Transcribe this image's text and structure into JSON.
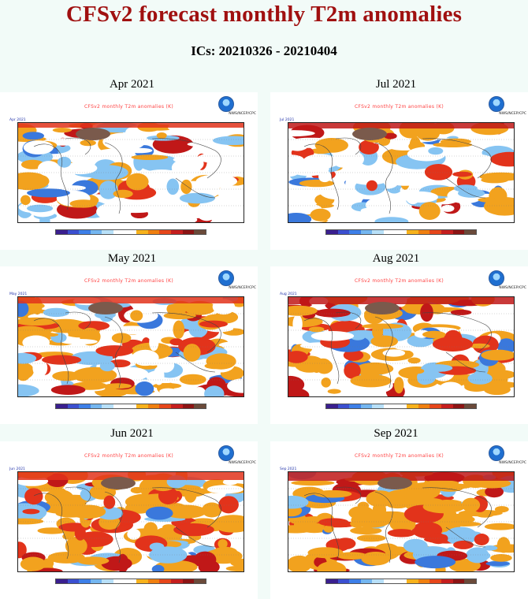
{
  "header": {
    "title": "CFSv2 forecast monthly T2m anomalies",
    "subtitle": "ICs: 20210326 - 20210404"
  },
  "panels": [
    {
      "label": "Apr 2021",
      "map_title": "CFSv2 monthly T2m anomalies (K)",
      "month_tag": "Apr 2021",
      "agency": "NWS/NCEP/CPC"
    },
    {
      "label": "Jul 2021",
      "map_title": "CFSv2 monthly T2m anomalies (K)",
      "month_tag": "Jul 2021",
      "agency": "NWS/NCEP/CPC"
    },
    {
      "label": "May 2021",
      "map_title": "CFSv2 monthly T2m anomalies (K)",
      "month_tag": "May 2021",
      "agency": "NWS/NCEP/CPC"
    },
    {
      "label": "Aug 2021",
      "map_title": "CFSv2 monthly T2m anomalies (K)",
      "month_tag": "Aug 2021",
      "agency": "NWS/NCEP/CPC"
    },
    {
      "label": "Jun 2021",
      "map_title": "CFSv2 monthly T2m anomalies (K)",
      "month_tag": "Jun 2021",
      "agency": "NWS/NCEP/CPC"
    },
    {
      "label": "Sep 2021",
      "map_title": "CFSv2 monthly T2m anomalies (K)",
      "month_tag": "Sep 2021",
      "agency": "NWS/NCEP/CPC"
    }
  ],
  "colors": {
    "title": "#a01010",
    "colorbar": [
      "#3a1f8f",
      "#3b4fd0",
      "#3d7fe8",
      "#74b6f0",
      "#b8e0f8",
      "#ffffff",
      "#ffffff",
      "#f7b21c",
      "#f07f0f",
      "#e6461a",
      "#c51e1e",
      "#8c1414",
      "#6b4a3a"
    ]
  }
}
